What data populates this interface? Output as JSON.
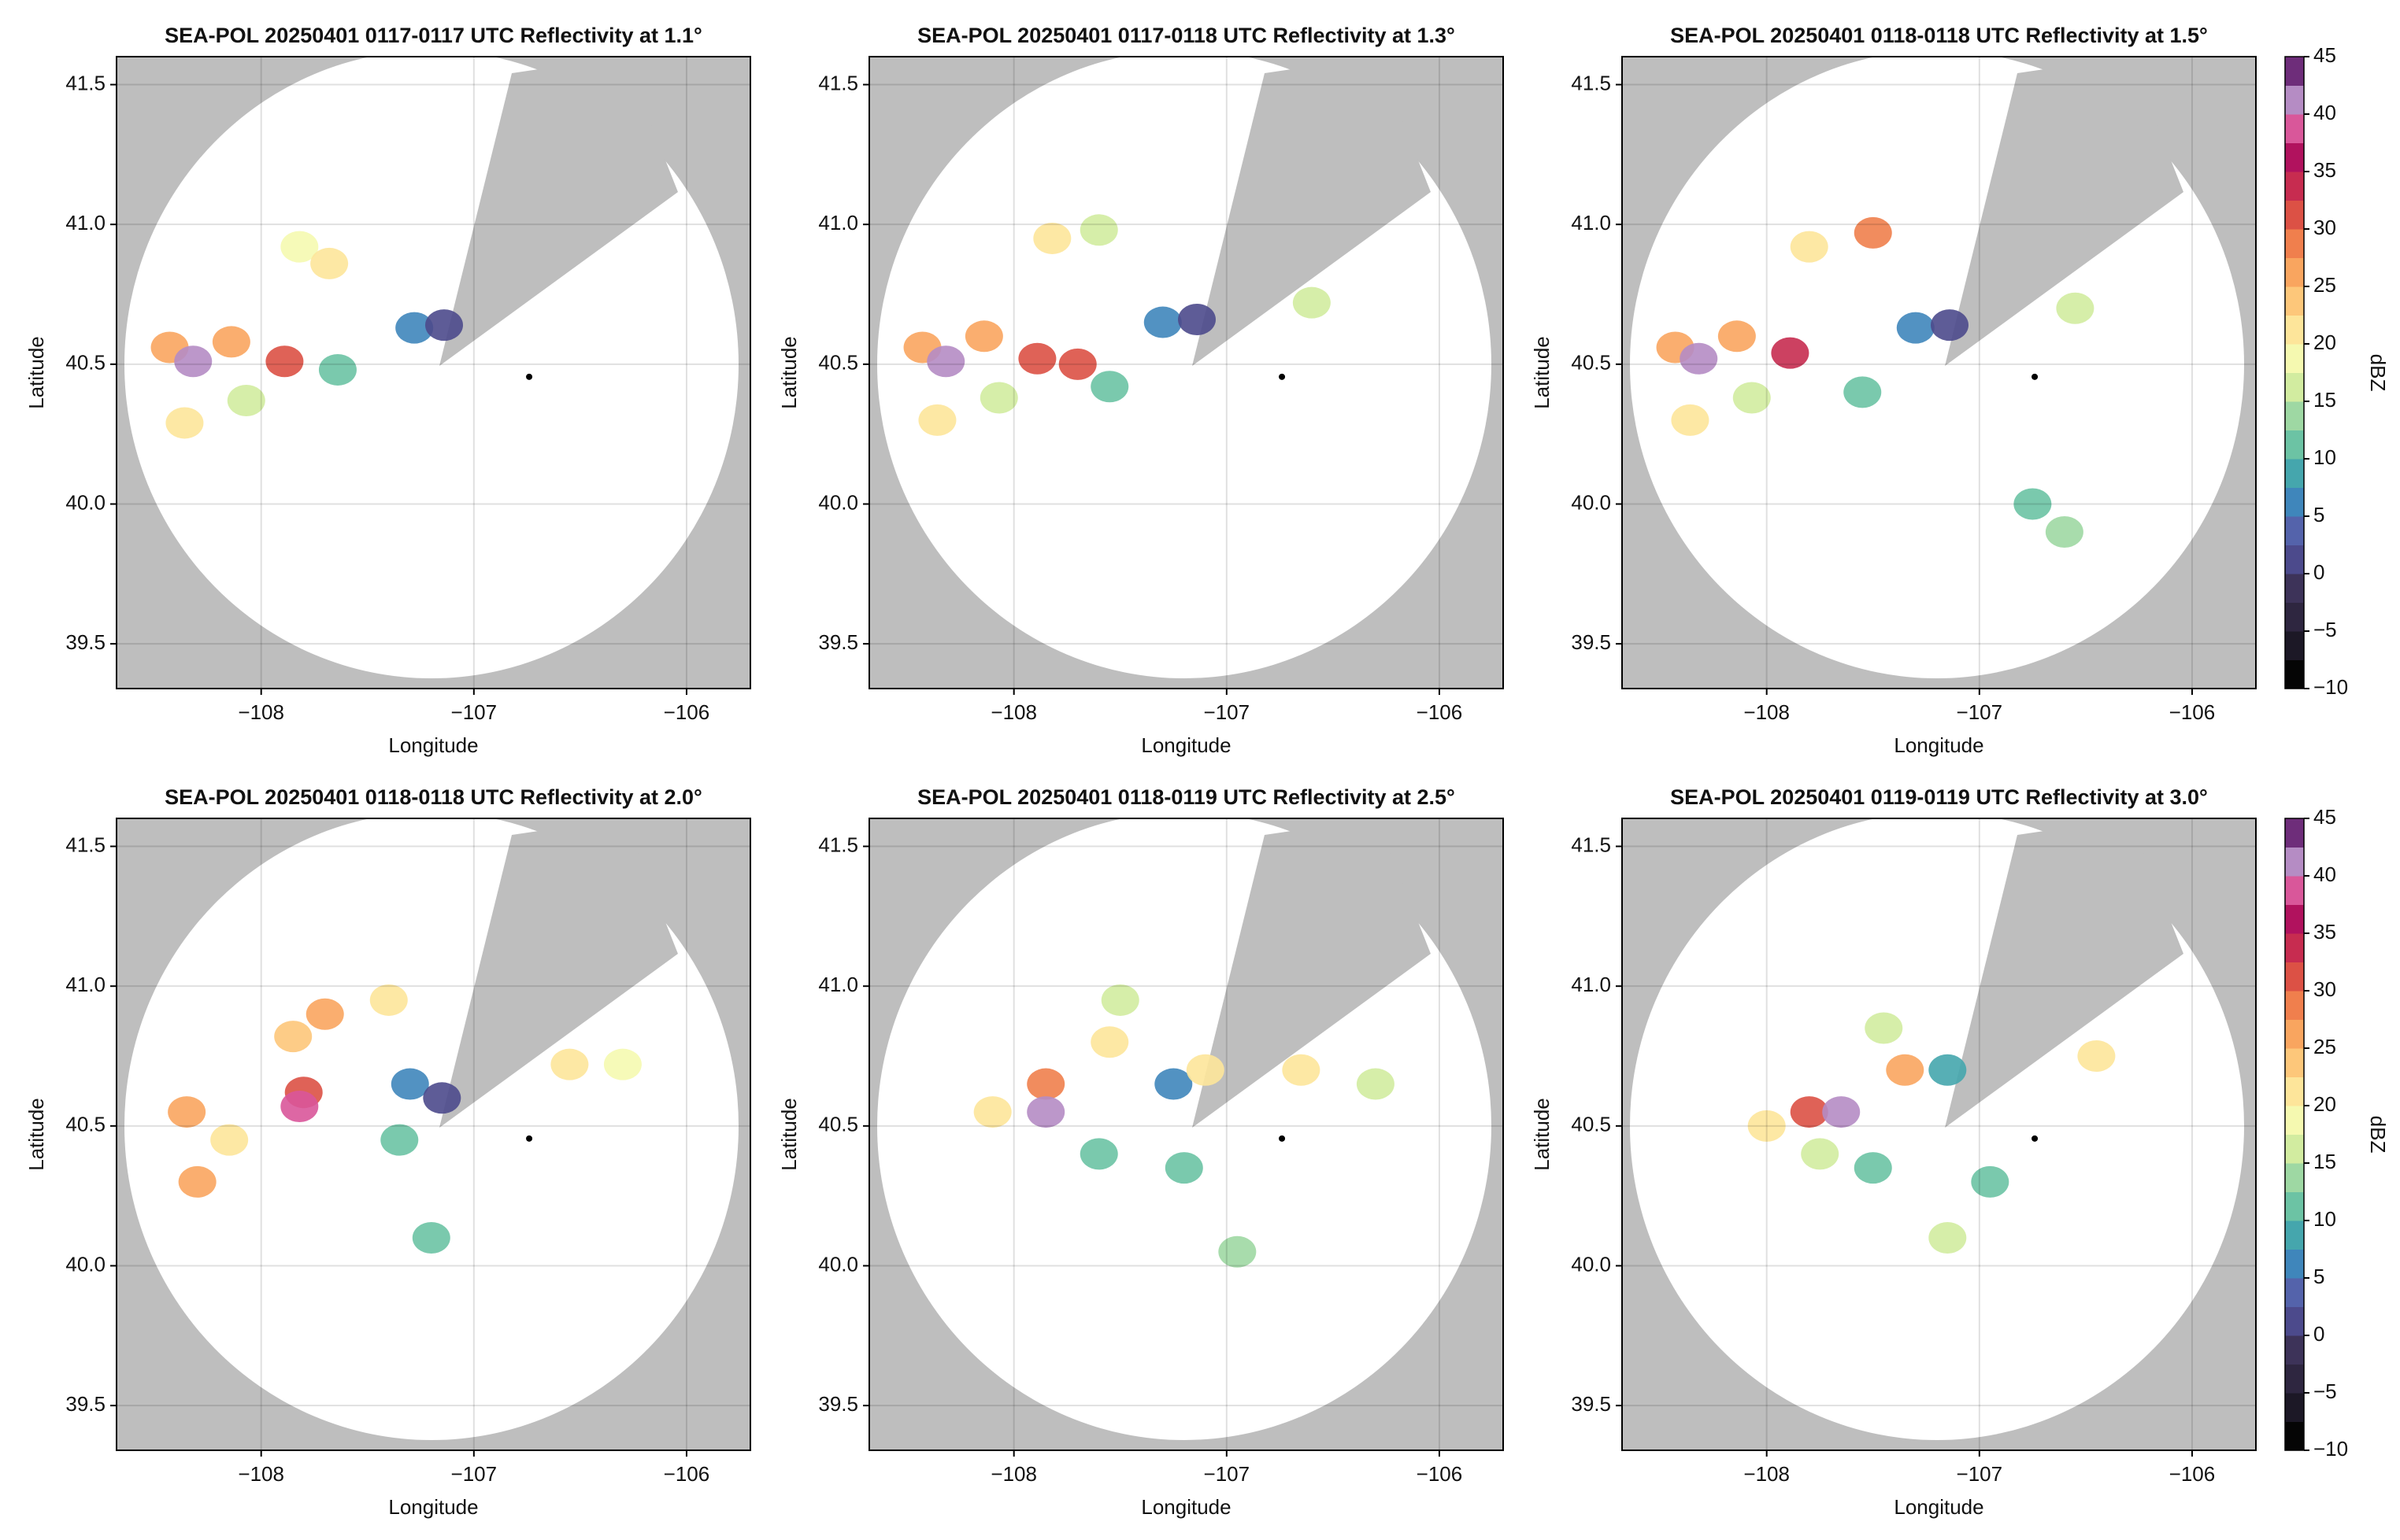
{
  "chart_data": [
    {
      "type": "radar",
      "title": "SEA-POL 20250401 0117-0117 UTC Reflectivity at 1.1°",
      "x_label": "Longitude",
      "y_label": "Latitude",
      "xlim": [
        -108.68,
        -105.7
      ],
      "ylim": [
        39.34,
        41.6
      ],
      "xticks": [
        {
          "value": -108,
          "label": "−108"
        },
        {
          "value": -107,
          "label": "−107"
        },
        {
          "value": -106,
          "label": "−106"
        }
      ],
      "yticks": [
        39.5,
        {
          "value": 40,
          "label": "40.0"
        },
        40.5,
        {
          "value": 41,
          "label": "41.0"
        },
        41.5
      ],
      "grid": true,
      "marker": {
        "x": -106.74,
        "y": 40.455
      },
      "echoes": {
        "x": [
          -108.43,
          -108.14,
          -108.36,
          -107.82,
          -107.68,
          -108.07,
          -107.64,
          -107.89,
          -107.28,
          -107.14,
          -108.32
        ],
        "y": [
          40.56,
          40.58,
          40.29,
          40.92,
          40.86,
          40.37,
          40.48,
          40.51,
          40.63,
          40.64,
          40.51
        ],
        "values": [
          25,
          25,
          22,
          18,
          20,
          15,
          12,
          30,
          5,
          2,
          40
        ]
      }
    },
    {
      "type": "radar",
      "title": "SEA-POL 20250401 0117-0118 UTC Reflectivity at 1.3°",
      "x_label": "Longitude",
      "y_label": "Latitude",
      "xlim": [
        -108.68,
        -105.7
      ],
      "ylim": [
        39.34,
        41.6
      ],
      "xticks": [
        {
          "value": -108,
          "label": "−108"
        },
        {
          "value": -107,
          "label": "−107"
        },
        {
          "value": -106,
          "label": "−106"
        }
      ],
      "yticks": [
        39.5,
        {
          "value": 40,
          "label": "40.0"
        },
        40.5,
        {
          "value": 41,
          "label": "41.0"
        },
        41.5
      ],
      "grid": true,
      "marker": {
        "x": -106.74,
        "y": 40.455
      },
      "echoes": {
        "x": [
          -108.43,
          -108.14,
          -108.36,
          -107.82,
          -107.6,
          -108.07,
          -107.55,
          -107.89,
          -107.3,
          -107.14,
          -106.6,
          -107.7,
          -108.32
        ],
        "y": [
          40.56,
          40.6,
          40.3,
          40.95,
          40.98,
          40.38,
          40.42,
          40.52,
          40.65,
          40.66,
          40.72,
          40.5,
          40.51
        ],
        "values": [
          25,
          25,
          22,
          20,
          15,
          15,
          10,
          30,
          5,
          2,
          15,
          32,
          40
        ]
      }
    },
    {
      "type": "radar",
      "title": "SEA-POL 20250401 0118-0118 UTC Reflectivity at 1.5°",
      "x_label": "Longitude",
      "y_label": "Latitude",
      "xlim": [
        -108.68,
        -105.7
      ],
      "ylim": [
        39.34,
        41.6
      ],
      "xticks": [
        {
          "value": -108,
          "label": "−108"
        },
        {
          "value": -107,
          "label": "−107"
        },
        {
          "value": -106,
          "label": "−106"
        }
      ],
      "yticks": [
        39.5,
        {
          "value": 40,
          "label": "40.0"
        },
        40.5,
        {
          "value": 41,
          "label": "41.0"
        },
        41.5
      ],
      "grid": true,
      "marker": {
        "x": -106.74,
        "y": 40.455
      },
      "echoes": {
        "x": [
          -108.43,
          -108.14,
          -108.36,
          -107.8,
          -107.5,
          -108.07,
          -107.55,
          -107.89,
          -107.3,
          -107.14,
          -106.55,
          -106.6,
          -108.32,
          -106.75
        ],
        "y": [
          40.56,
          40.6,
          40.3,
          40.92,
          40.97,
          40.38,
          40.4,
          40.54,
          40.63,
          40.64,
          40.7,
          39.9,
          40.52,
          40.0
        ],
        "values": [
          25,
          25,
          20,
          22,
          28,
          15,
          10,
          33,
          5,
          2,
          15,
          13,
          40,
          12
        ]
      },
      "colorbar": {
        "label": "dBZ",
        "lim": [
          -10,
          45
        ],
        "ticks": [
          {
            "value": -10,
            "label": "−10"
          },
          {
            "value": -5,
            "label": "−5"
          },
          0,
          5,
          10,
          15,
          20,
          25,
          30,
          35,
          40,
          45
        ],
        "colors": [
          "#050505",
          "#1c1826",
          "#2e2640",
          "#3d3359",
          "#4c4a8c",
          "#5463ab",
          "#3f86bb",
          "#45a6ad",
          "#6cc3a4",
          "#9ed8a3",
          "#d2eca0",
          "#f5f9b0",
          "#fde59a",
          "#fdc77a",
          "#f9a55f",
          "#f07f4d",
          "#dc5145",
          "#c72c50",
          "#b1125e",
          "#d9579a",
          "#b58cc4",
          "#6e2d7a"
        ]
      }
    },
    {
      "type": "radar",
      "title": "SEA-POL 20250401 0118-0118 UTC Reflectivity at 2.0°",
      "x_label": "Longitude",
      "y_label": "Latitude",
      "xlim": [
        -108.68,
        -105.7
      ],
      "ylim": [
        39.34,
        41.6
      ],
      "xticks": [
        {
          "value": -108,
          "label": "−108"
        },
        {
          "value": -107,
          "label": "−107"
        },
        {
          "value": -106,
          "label": "−106"
        }
      ],
      "yticks": [
        39.5,
        {
          "value": 40,
          "label": "40.0"
        },
        40.5,
        {
          "value": 41,
          "label": "41.0"
        },
        41.5
      ],
      "grid": true,
      "marker": {
        "x": -106.74,
        "y": 40.455
      },
      "echoes": {
        "x": [
          -108.35,
          -108.15,
          -107.85,
          -107.7,
          -107.4,
          -107.3,
          -107.15,
          -106.55,
          -106.3,
          -107.8,
          -107.2,
          -107.35,
          -108.3,
          -107.82
        ],
        "y": [
          40.55,
          40.45,
          40.82,
          40.9,
          40.95,
          40.65,
          40.6,
          40.72,
          40.72,
          40.62,
          40.1,
          40.45,
          40.3,
          40.57
        ],
        "values": [
          27,
          22,
          24,
          25,
          20,
          5,
          2,
          20,
          18,
          30,
          10,
          12,
          26,
          38
        ]
      }
    },
    {
      "type": "radar",
      "title": "SEA-POL 20250401 0118-0119 UTC Reflectivity at 2.5°",
      "x_label": "Longitude",
      "y_label": "Latitude",
      "xlim": [
        -108.68,
        -105.7
      ],
      "ylim": [
        39.34,
        41.6
      ],
      "xticks": [
        {
          "value": -108,
          "label": "−108"
        },
        {
          "value": -107,
          "label": "−107"
        },
        {
          "value": -106,
          "label": "−106"
        }
      ],
      "yticks": [
        39.5,
        {
          "value": 40,
          "label": "40.0"
        },
        40.5,
        {
          "value": 41,
          "label": "41.0"
        },
        41.5
      ],
      "grid": true,
      "marker": {
        "x": -106.74,
        "y": 40.455
      },
      "echoes": {
        "x": [
          -108.1,
          -107.85,
          -107.55,
          -107.5,
          -107.25,
          -107.1,
          -106.65,
          -106.3,
          -107.2,
          -106.95,
          -107.6,
          -107.85
        ],
        "y": [
          40.55,
          40.65,
          40.8,
          40.95,
          40.65,
          40.7,
          40.7,
          40.65,
          40.35,
          40.05,
          40.4,
          40.55
        ],
        "values": [
          22,
          28,
          22,
          15,
          5,
          20,
          20,
          15,
          10,
          13,
          12,
          40
        ]
      }
    },
    {
      "type": "radar",
      "title": "SEA-POL 20250401 0119-0119 UTC Reflectivity at 3.0°",
      "x_label": "Longitude",
      "y_label": "Latitude",
      "xlim": [
        -108.68,
        -105.7
      ],
      "ylim": [
        39.34,
        41.6
      ],
      "xticks": [
        {
          "value": -108,
          "label": "−108"
        },
        {
          "value": -107,
          "label": "−107"
        },
        {
          "value": -106,
          "label": "−106"
        }
      ],
      "yticks": [
        39.5,
        {
          "value": 40,
          "label": "40.0"
        },
        40.5,
        {
          "value": 41,
          "label": "41.0"
        },
        41.5
      ],
      "grid": true,
      "marker": {
        "x": -106.74,
        "y": 40.455
      },
      "echoes": {
        "x": [
          -108.0,
          -107.8,
          -107.45,
          -107.35,
          -107.15,
          -106.45,
          -107.5,
          -107.15,
          -106.95,
          -107.75,
          -107.65
        ],
        "y": [
          40.5,
          40.55,
          40.85,
          40.7,
          40.7,
          40.75,
          40.35,
          40.1,
          40.3,
          40.4,
          40.55
        ],
        "values": [
          20,
          30,
          15,
          25,
          8,
          22,
          12,
          15,
          10,
          15,
          40
        ]
      },
      "colorbar": {
        "label": "dBZ",
        "lim": [
          -10,
          45
        ],
        "ticks": [
          {
            "value": -10,
            "label": "−10"
          },
          {
            "value": -5,
            "label": "−5"
          },
          0,
          5,
          10,
          15,
          20,
          25,
          30,
          35,
          40,
          45
        ],
        "colors": [
          "#050505",
          "#1c1826",
          "#2e2640",
          "#3d3359",
          "#4c4a8c",
          "#5463ab",
          "#3f86bb",
          "#45a6ad",
          "#6cc3a4",
          "#9ed8a3",
          "#d2eca0",
          "#f5f9b0",
          "#fde59a",
          "#fdc77a",
          "#f9a55f",
          "#f07f4d",
          "#dc5145",
          "#c72c50",
          "#b1125e",
          "#d9579a",
          "#b58cc4",
          "#6e2d7a"
        ]
      }
    }
  ]
}
